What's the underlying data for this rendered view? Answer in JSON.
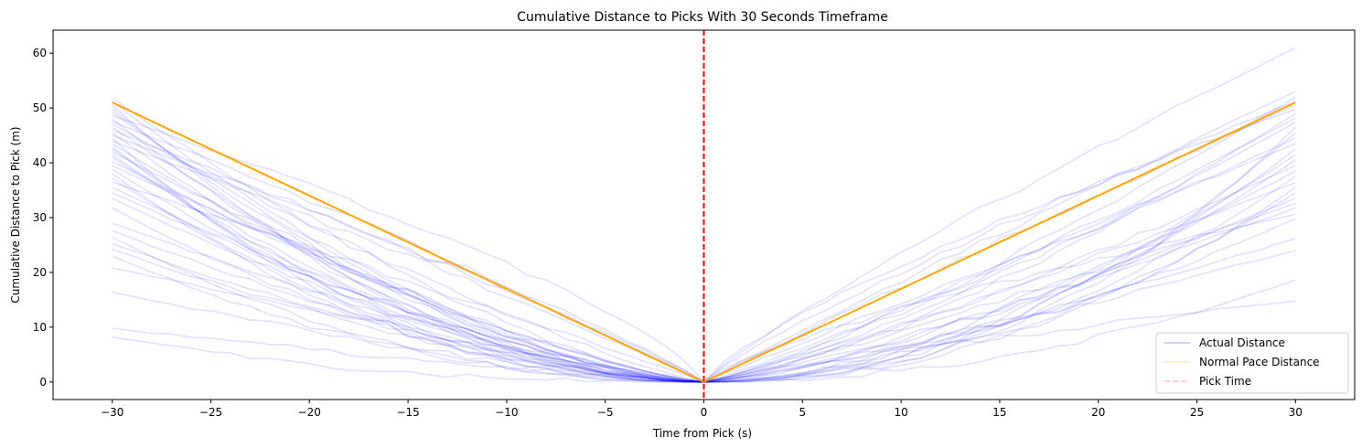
{
  "chart_data": {
    "type": "line",
    "title": "Cumulative Distance to Picks With 30 Seconds Timeframe",
    "xlabel": "Time from Pick (s)",
    "ylabel": "Cumulative Distance to Pick (m)",
    "xlim": [
      -33,
      33
    ],
    "ylim": [
      -3.2,
      64.2
    ],
    "xticks": [
      -30,
      -25,
      -20,
      -15,
      -10,
      -5,
      0,
      5,
      10,
      15,
      20,
      25,
      30
    ],
    "xtick_labels": [
      "−30",
      "−25",
      "−20",
      "−15",
      "−10",
      "−5",
      "0",
      "5",
      "10",
      "15",
      "20",
      "25",
      "30"
    ],
    "yticks": [
      0,
      10,
      20,
      30,
      40,
      50,
      60
    ],
    "ytick_labels": [
      "0",
      "10",
      "20",
      "30",
      "40",
      "50",
      "60"
    ],
    "grid": false,
    "legend_position": "lower-right",
    "series": [
      {
        "name": "Actual Distance",
        "role": "actual",
        "color": "#0000ff",
        "opacity": 0.12,
        "before_endpoints_at_minus30": [
          8.2,
          9.8,
          16.4,
          20.8,
          23.0,
          24.2,
          25.2,
          26.4,
          27.6,
          29.0,
          31.8,
          33.5,
          34.5,
          35.5,
          36.5,
          37.2,
          38.0,
          38.8,
          39.5,
          40.2,
          41.0,
          41.5,
          42.0,
          42.5,
          43.0,
          43.5,
          44.0,
          44.5,
          45.0,
          45.5,
          46.0,
          46.5,
          47.0,
          47.5,
          48.0,
          48.6,
          49.2,
          49.8,
          50.5,
          51.2,
          51.8
        ],
        "after_endpoints_at_30": [
          14.8,
          18.6,
          24.0,
          26.2,
          29.8,
          30.6,
          31.8,
          32.6,
          33.5,
          34.5,
          35.5,
          36.4,
          37.5,
          38.5,
          39.5,
          40.5,
          41.5,
          42.5,
          43.5,
          44.5,
          45.5,
          46.5,
          47.4,
          48.2,
          49.0,
          49.8,
          50.5,
          51.2,
          52.0,
          53.0,
          61.0
        ],
        "value_at_0": 0
      },
      {
        "name": "Normal Pace Distance",
        "role": "normal",
        "color": "#ffa500",
        "x": [
          -30,
          0,
          30
        ],
        "y": [
          51.0,
          0,
          51.0
        ]
      },
      {
        "name": "Pick Time",
        "role": "vline",
        "color": "#ff0000",
        "x": 0
      }
    ]
  }
}
